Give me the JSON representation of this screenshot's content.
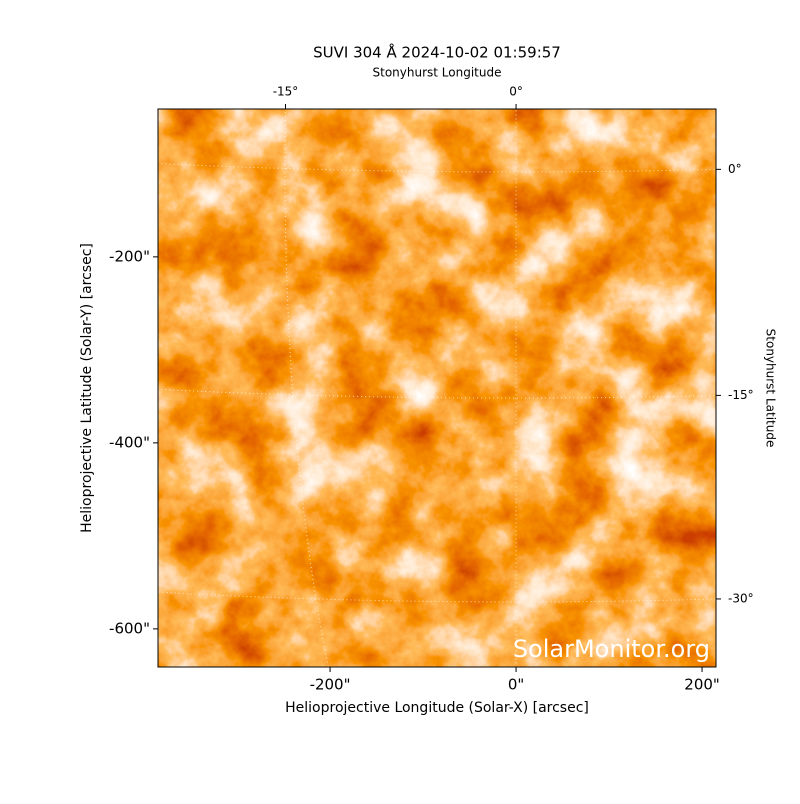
{
  "chart_data": {
    "type": "image",
    "title": "SUVI 304 Å 2024-10-02 01:59:57",
    "x_label": "Helioprojective Longitude (Solar-X) [arcsec]",
    "y_label": "Helioprojective Latitude (Solar-Y) [arcsec]",
    "x2_label": "Stonyhurst Longitude",
    "y2_label": "Stonyhurst Latitude",
    "watermark": "SolarMonitor.org",
    "xlim": [
      -385,
      215
    ],
    "ylim": [
      -641,
      -41
    ],
    "xticks": [
      {
        "value": -200,
        "label": "-200\""
      },
      {
        "value": 0,
        "label": "0\""
      },
      {
        "value": 200,
        "label": "200\""
      }
    ],
    "yticks": [
      {
        "value": -200,
        "label": "-200\""
      },
      {
        "value": -400,
        "label": "-400\""
      },
      {
        "value": -600,
        "label": "-600\""
      }
    ],
    "x2ticks": [
      {
        "value": -15,
        "label": "-15°"
      },
      {
        "value": 0,
        "label": "0°"
      }
    ],
    "y2ticks": [
      {
        "value": 0,
        "label": "0°"
      },
      {
        "value": -15,
        "label": "-15°"
      },
      {
        "value": -30,
        "label": "-30°"
      }
    ],
    "grid": true
  }
}
